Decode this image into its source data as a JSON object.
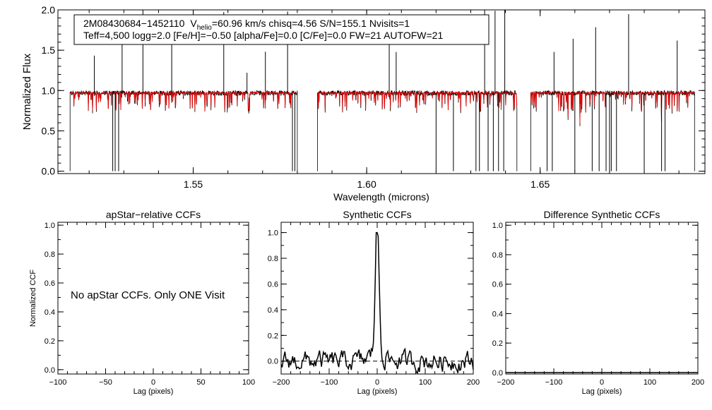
{
  "chart_data": [
    {
      "type": "line",
      "id": "spectrum",
      "xlabel": "Wavelength (microns)",
      "ylabel": "Normalized Flux",
      "xlim": [
        1.511,
        1.6975
      ],
      "ylim": [
        -0.03,
        2.0
      ],
      "xticks": [
        1.55,
        1.6,
        1.65
      ],
      "xtick_labels": [
        "1.55",
        "1.60",
        "1.65"
      ],
      "yticks": [
        0.0,
        0.5,
        1.0,
        1.5,
        2.0
      ],
      "ytick_labels": [
        "0.0",
        "0.5",
        "1.0",
        "1.5",
        "2.0"
      ],
      "info_box": {
        "line1_name": "2M08430684−1452110",
        "line1_v": "V",
        "line1_vsub": "helio",
        "line1_rest": "=60.96 km/s  chisq=4.56  S/N=155.1  Nvisits=1",
        "line2": "Teff=4,500 logg=2.0 [Fe/H]=−0.50 [alpha/Fe]=0.0 [C/Fe]=0.0 FW=21 AUTOFW=21"
      },
      "chips": [
        [
          1.5145,
          1.58
        ],
        [
          1.5858,
          1.6433
        ],
        [
          1.6473,
          1.6945
        ]
      ],
      "series": [
        {
          "role": "observed",
          "color": "#000000"
        },
        {
          "role": "model",
          "color": "#e00000"
        }
      ],
      "continuum": 0.97,
      "spikes": [
        1.5215,
        1.5295,
        1.5355,
        1.5438,
        1.5588,
        1.5655,
        1.5708,
        1.5772,
        1.6065,
        1.6085,
        1.634,
        1.637,
        1.6398,
        1.654,
        1.6595,
        1.666,
        1.6755,
        1.6895
      ],
      "drops": [
        1.5268,
        1.5275,
        1.5285,
        1.5786,
        1.5793,
        1.62,
        1.625,
        1.6315,
        1.6325,
        1.635,
        1.6365,
        1.638,
        1.6395,
        1.652,
        1.6535,
        1.66,
        1.665,
        1.667,
        1.669,
        1.67,
        1.6705,
        1.672,
        1.68,
        1.685,
        1.686
      ]
    },
    {
      "type": "line",
      "id": "apstar",
      "title": "apStar−relative CCFs",
      "xlabel": "Lag (pixels)",
      "ylabel": "Normalized CCF",
      "xlim": [
        -100,
        100
      ],
      "ylim": [
        -0.03,
        1.02
      ],
      "xticks": [
        -100,
        -50,
        0,
        50,
        100
      ],
      "xtick_labels": [
        "−100",
        "−50",
        "0",
        "50",
        "100"
      ],
      "yticks": [
        0.0,
        0.2,
        0.4,
        0.6,
        0.8,
        1.0
      ],
      "ytick_labels": [
        "0.0",
        "0.2",
        "0.4",
        "0.6",
        "0.8",
        "1.0"
      ],
      "annotation": "No apStar CCFs.  Only ONE Visit"
    },
    {
      "type": "line",
      "id": "synthetic",
      "title": "Synthetic CCFs",
      "xlabel": "Lag (pixels)",
      "xlim": [
        -200,
        200
      ],
      "ylim": [
        -0.1,
        1.08
      ],
      "xticks": [
        -200,
        -100,
        0,
        100,
        200
      ],
      "xtick_labels": [
        "−200",
        "−100",
        "0",
        "100",
        "200"
      ],
      "yticks": [
        0.0,
        0.2,
        0.4,
        0.6,
        0.8,
        1.0
      ],
      "ytick_labels": [
        "0.0",
        "0.2",
        "0.4",
        "0.6",
        "0.8",
        "1.0"
      ],
      "peak": {
        "x": 0,
        "y": 1.0
      },
      "baseline": 0.0,
      "series": [
        {
          "role": "ccf",
          "style": "solid",
          "color": "#000000"
        },
        {
          "role": "zero-level",
          "style": "dashed",
          "color": "#000000"
        }
      ]
    },
    {
      "type": "line",
      "id": "difference",
      "title": "Difference Synthetic CCFs",
      "xlabel": "Lag (pixels)",
      "xlim": [
        -200,
        200
      ],
      "ylim": [
        -0.01,
        1.02
      ],
      "xticks": [
        -200,
        -100,
        0,
        100,
        200
      ],
      "xtick_labels": [
        "−200",
        "−100",
        "0",
        "100",
        "200"
      ],
      "yticks": [
        0.0,
        0.2,
        0.4,
        0.6,
        0.8,
        1.0
      ],
      "ytick_labels": [
        "0.0",
        "0.2",
        "0.4",
        "0.6",
        "0.8",
        "1.0"
      ],
      "baseline": 0.0
    }
  ]
}
